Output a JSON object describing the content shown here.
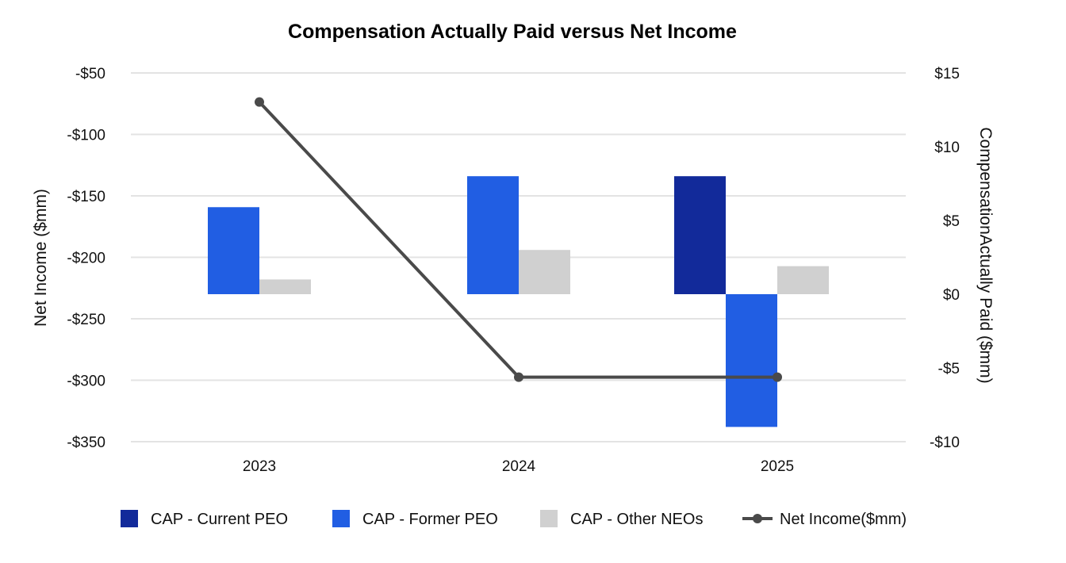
{
  "chart_data": {
    "type": "bar",
    "title": "Compensation Actually Paid versus Net Income",
    "categories": [
      "2023",
      "2024",
      "2025"
    ],
    "y_left": {
      "label": "Net Income ($mm)",
      "range": [
        -350,
        -50
      ],
      "ticks": [
        -50,
        -100,
        -150,
        -200,
        -250,
        -300,
        -350
      ],
      "tick_labels": [
        "-$50",
        "-$100",
        "-$150",
        "-$200",
        "-$250",
        "-$300",
        "-$350"
      ]
    },
    "y_right": {
      "label": "CompensationActually Paid ($mm)",
      "range": [
        -10,
        15
      ],
      "ticks": [
        15,
        10,
        5,
        0,
        -5,
        -10
      ],
      "tick_labels": [
        "$15",
        "$10",
        "$5",
        "$0",
        "-$5",
        "-$10"
      ]
    },
    "grid": true,
    "legend_position": "bottom",
    "series": [
      {
        "name": "CAP - Current PEO",
        "kind": "bar",
        "axis": "right",
        "color": "#122a9a",
        "values": [
          null,
          null,
          8.0
        ]
      },
      {
        "name": "CAP - Former PEO",
        "kind": "bar",
        "axis": "right",
        "color": "#215ee3",
        "values": [
          5.9,
          8.0,
          -9.0
        ]
      },
      {
        "name": "CAP - Other NEOs",
        "kind": "bar",
        "axis": "right",
        "color": "#d0d0d0",
        "values": [
          1.0,
          3.0,
          1.9
        ]
      },
      {
        "name": "Net Income($mm)",
        "kind": "line",
        "axis": "left",
        "color": "#4a4a4a",
        "values": [
          -73.6,
          -297.5,
          -297.5
        ]
      }
    ]
  }
}
